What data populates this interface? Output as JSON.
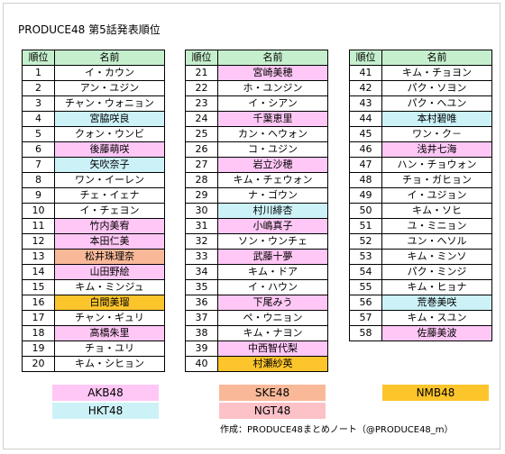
{
  "title": "PRODUCE48 第5話発表順位",
  "headers": {
    "rank": "順位",
    "name": "名前"
  },
  "colors": {
    "AKB48": "#ffc7f5",
    "HKT48": "#ccf2f8",
    "SKE48": "#f9b999",
    "NMB48": "#fdc52c",
    "NGT48": "#fdc1c8",
    "header": "#c6efce"
  },
  "tables": [
    [
      {
        "rank": "1",
        "name": "イ・カウン",
        "group": ""
      },
      {
        "rank": "2",
        "name": "アン・ユジン",
        "group": ""
      },
      {
        "rank": "3",
        "name": "チャン・ウォニョン",
        "group": ""
      },
      {
        "rank": "4",
        "name": "宮脇咲良",
        "group": "HKT48"
      },
      {
        "rank": "5",
        "name": "クォン・ウンビ",
        "group": ""
      },
      {
        "rank": "6",
        "name": "後藤萌咲",
        "group": "AKB48"
      },
      {
        "rank": "7",
        "name": "矢吹奈子",
        "group": "HKT48"
      },
      {
        "rank": "8",
        "name": "ワン・イーレン",
        "group": ""
      },
      {
        "rank": "9",
        "name": "チェ・イェナ",
        "group": ""
      },
      {
        "rank": "10",
        "name": "イ・チェヨン",
        "group": ""
      },
      {
        "rank": "11",
        "name": "竹内美宥",
        "group": "AKB48"
      },
      {
        "rank": "12",
        "name": "本田仁美",
        "group": "AKB48"
      },
      {
        "rank": "13",
        "name": "松井珠理奈",
        "group": "SKE48"
      },
      {
        "rank": "14",
        "name": "山田野絵",
        "group": "AKB48"
      },
      {
        "rank": "15",
        "name": "キム・ミンジュ",
        "group": ""
      },
      {
        "rank": "16",
        "name": "白間美瑠",
        "group": "NMB48"
      },
      {
        "rank": "17",
        "name": "チャン・ギュリ",
        "group": ""
      },
      {
        "rank": "18",
        "name": "高橋朱里",
        "group": "AKB48"
      },
      {
        "rank": "19",
        "name": "チョ・ユリ",
        "group": ""
      },
      {
        "rank": "20",
        "name": "キム・シヒョン",
        "group": ""
      }
    ],
    [
      {
        "rank": "21",
        "name": "宮崎美穂",
        "group": "AKB48"
      },
      {
        "rank": "22",
        "name": "ホ・ユンジン",
        "group": ""
      },
      {
        "rank": "23",
        "name": "イ・シアン",
        "group": ""
      },
      {
        "rank": "24",
        "name": "千葉恵里",
        "group": "AKB48"
      },
      {
        "rank": "25",
        "name": "カン・ヘウォン",
        "group": ""
      },
      {
        "rank": "26",
        "name": "コ・ユジン",
        "group": ""
      },
      {
        "rank": "27",
        "name": "岩立沙穂",
        "group": "AKB48"
      },
      {
        "rank": "28",
        "name": "キム・チェウォン",
        "group": ""
      },
      {
        "rank": "29",
        "name": "ナ・ゴウン",
        "group": ""
      },
      {
        "rank": "30",
        "name": "村川緋杏",
        "group": "HKT48"
      },
      {
        "rank": "31",
        "name": "小嶋真子",
        "group": "AKB48"
      },
      {
        "rank": "32",
        "name": "ソン・ウンチェ",
        "group": ""
      },
      {
        "rank": "33",
        "name": "武藤十夢",
        "group": "AKB48"
      },
      {
        "rank": "34",
        "name": "キム・ドア",
        "group": ""
      },
      {
        "rank": "35",
        "name": "イ・ハウン",
        "group": ""
      },
      {
        "rank": "36",
        "name": "下尾みう",
        "group": "AKB48"
      },
      {
        "rank": "37",
        "name": "ペ・ウニョン",
        "group": ""
      },
      {
        "rank": "38",
        "name": "キム・ナヨン",
        "group": ""
      },
      {
        "rank": "39",
        "name": "中西智代梨",
        "group": "AKB48"
      },
      {
        "rank": "40",
        "name": "村瀬紗英",
        "group": "NMB48"
      }
    ],
    [
      {
        "rank": "41",
        "name": "キム・チョヨン",
        "group": ""
      },
      {
        "rank": "42",
        "name": "パク・ソヨン",
        "group": ""
      },
      {
        "rank": "43",
        "name": "パク・ヘユン",
        "group": ""
      },
      {
        "rank": "44",
        "name": "本村碧唯",
        "group": "HKT48"
      },
      {
        "rank": "45",
        "name": "ワン・ク－",
        "group": ""
      },
      {
        "rank": "46",
        "name": "浅井七海",
        "group": "AKB48"
      },
      {
        "rank": "47",
        "name": "ハン・チョウォン",
        "group": ""
      },
      {
        "rank": "48",
        "name": "チョ・ガヒョン",
        "group": ""
      },
      {
        "rank": "49",
        "name": "イ・ユジョン",
        "group": ""
      },
      {
        "rank": "50",
        "name": "キム・ソヒ",
        "group": ""
      },
      {
        "rank": "51",
        "name": "ユ・ミニョン",
        "group": ""
      },
      {
        "rank": "52",
        "name": "ユン・ヘソル",
        "group": ""
      },
      {
        "rank": "53",
        "name": "キム・ミンソ",
        "group": ""
      },
      {
        "rank": "54",
        "name": "パク・ミンジ",
        "group": ""
      },
      {
        "rank": "55",
        "name": "キム・ヒョナ",
        "group": ""
      },
      {
        "rank": "56",
        "name": "荒巻美咲",
        "group": "HKT48"
      },
      {
        "rank": "57",
        "name": "キム・スユン",
        "group": ""
      },
      {
        "rank": "58",
        "name": "佐藤美波",
        "group": "AKB48"
      }
    ]
  ],
  "legend": {
    "akb": "AKB48",
    "hkt": "HKT48",
    "ske": "SKE48",
    "ngt": "NGT48",
    "nmb": "NMB48"
  },
  "credit": "作成：PRODUCE48まとめノート（@PRODUCE48_m）"
}
